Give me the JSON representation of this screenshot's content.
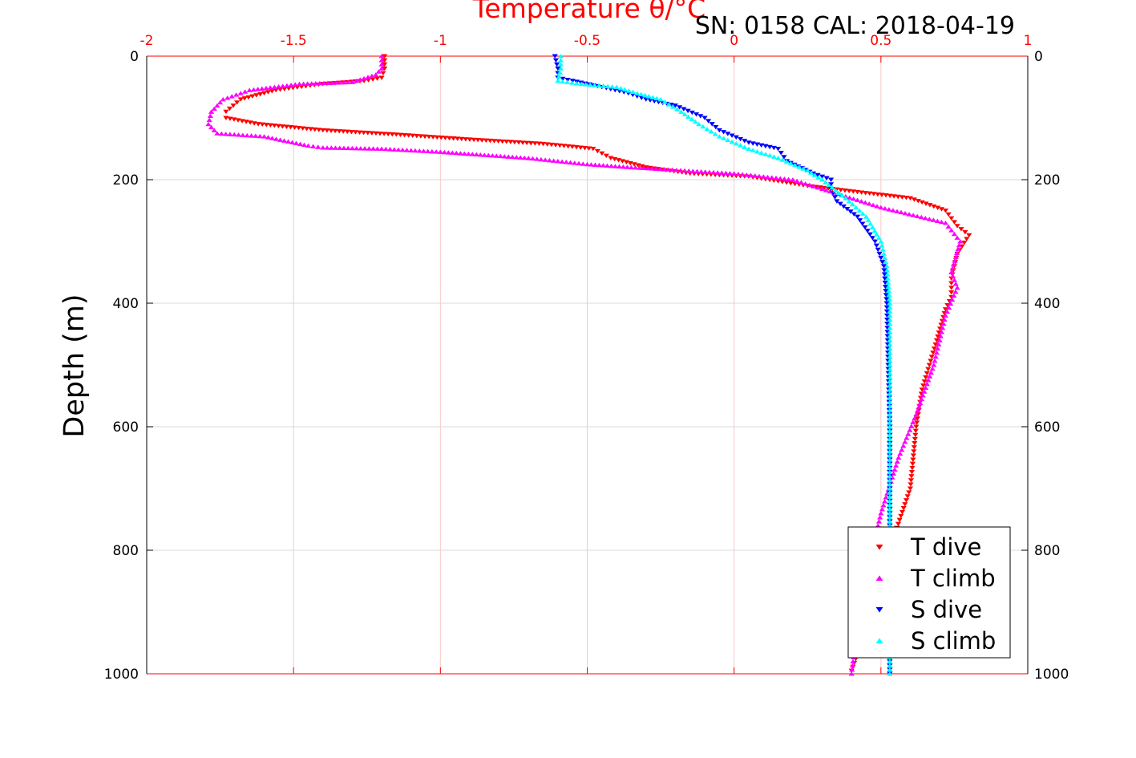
{
  "chart_data": {
    "type": "scatter",
    "title": "Temperature θ/°C",
    "subtitle": "SN: 0158  CAL: 2018-04-19",
    "xlabel": "Temperature θ/°C",
    "ylabel": "Depth (m)",
    "xlim": [
      -2,
      1
    ],
    "ylim": [
      1000,
      0
    ],
    "x_ticks": [
      "-2",
      "-1.5",
      "-1",
      "-0.5",
      "0",
      "0.5",
      "1"
    ],
    "y_ticks": [
      "0",
      "200",
      "400",
      "600",
      "800",
      "1000"
    ],
    "grid": true,
    "legend_position": "bottom-right",
    "colors": {
      "axis_x": "#ff0000",
      "axis_y": "#000000",
      "grid": "#d9d9d9"
    },
    "series": [
      {
        "name": "T dive",
        "color": "#ff0000",
        "marker": "triangle-down",
        "x": [
          -1.19,
          -1.19,
          -1.2,
          -1.26,
          -1.4,
          -1.56,
          -1.68,
          -1.73,
          -1.73,
          -1.62,
          -1.4,
          -1.15,
          -0.9,
          -0.65,
          -0.48,
          -0.42,
          -0.3,
          -0.15,
          0.05,
          0.25,
          0.42,
          0.6,
          0.72,
          0.76,
          0.8,
          0.76,
          0.74,
          0.74,
          0.72,
          0.69,
          0.64,
          0.62,
          0.6,
          0.55,
          0.47,
          0.4
        ],
        "y": [
          0,
          20,
          35,
          40,
          45,
          55,
          70,
          90,
          100,
          110,
          120,
          127,
          135,
          142,
          150,
          165,
          180,
          190,
          195,
          210,
          220,
          230,
          250,
          275,
          290,
          320,
          360,
          390,
          410,
          460,
          540,
          600,
          700,
          770,
          900,
          995
        ]
      },
      {
        "name": "T climb",
        "color": "#ff00ff",
        "marker": "triangle-up",
        "x": [
          -1.2,
          -1.2,
          -1.22,
          -1.3,
          -1.48,
          -1.65,
          -1.74,
          -1.78,
          -1.79,
          -1.76,
          -1.6,
          -1.45,
          -1.4,
          -1.2,
          -1.0,
          -0.7,
          -0.5,
          -0.35,
          0.0,
          0.2,
          0.3,
          0.5,
          0.72,
          0.77,
          0.74,
          0.76,
          0.72,
          0.68,
          0.62,
          0.56,
          0.5,
          0.46,
          0.42,
          0.4
        ],
        "y": [
          0,
          20,
          30,
          42,
          45,
          55,
          70,
          90,
          110,
          125,
          130,
          145,
          148,
          150,
          155,
          165,
          175,
          180,
          190,
          200,
          215,
          245,
          270,
          300,
          350,
          375,
          420,
          500,
          580,
          650,
          740,
          820,
          920,
          1000
        ],
        "x_extra": [],
        "note_free": true
      },
      {
        "name": "S dive",
        "color": "#0000ff",
        "marker": "triangle-down",
        "x": [
          -0.61,
          -0.6,
          -0.6,
          -0.55,
          -0.45,
          -0.36,
          -0.3,
          -0.2,
          -0.1,
          -0.05,
          0.05,
          0.15,
          0.18,
          0.27,
          0.33,
          0.33,
          0.35,
          0.42,
          0.48,
          0.51,
          0.52,
          0.53,
          0.53,
          0.53
        ],
        "y": [
          0,
          20,
          35,
          40,
          50,
          60,
          70,
          80,
          100,
          120,
          140,
          150,
          170,
          190,
          200,
          215,
          235,
          260,
          300,
          340,
          400,
          600,
          800,
          1000
        ]
      },
      {
        "name": "S climb",
        "color": "#00ffff",
        "marker": "triangle-up",
        "x": [
          -0.59,
          -0.59,
          -0.6,
          -0.52,
          -0.4,
          -0.33,
          -0.25,
          -0.18,
          -0.12,
          -0.05,
          0.05,
          0.15,
          0.25,
          0.3,
          0.38,
          0.45,
          0.5,
          0.52,
          0.53,
          0.53,
          0.53,
          0.53
        ],
        "y": [
          0,
          20,
          40,
          45,
          50,
          60,
          70,
          90,
          110,
          130,
          150,
          165,
          185,
          200,
          230,
          260,
          300,
          340,
          400,
          600,
          800,
          1000
        ]
      }
    ]
  }
}
